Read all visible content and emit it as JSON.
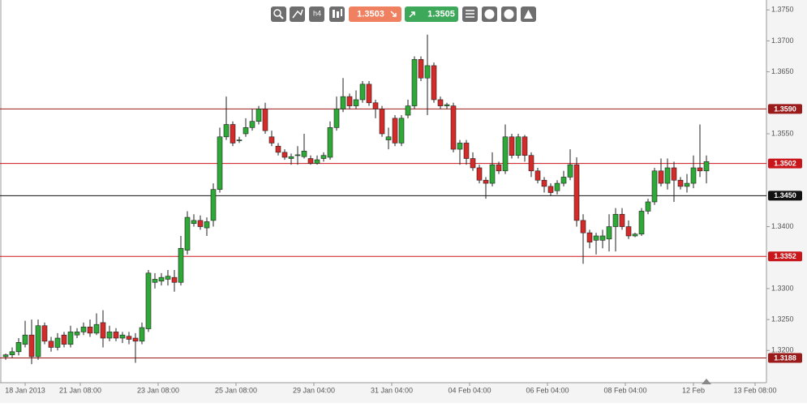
{
  "chart_data": {
    "type": "candlestick",
    "ylim": [
      1.3148,
      1.3766
    ],
    "xlim": [
      -0.875,
      117.25
    ],
    "yticks": [
      {
        "value": 1.375,
        "label": "1.3750"
      },
      {
        "value": 1.37,
        "label": "1.3700"
      },
      {
        "value": 1.365,
        "label": "1.3650"
      },
      {
        "value": 1.355,
        "label": "1.3550"
      },
      {
        "value": 1.34,
        "label": "1.3400"
      },
      {
        "value": 1.33,
        "label": "1.3300"
      },
      {
        "value": 1.325,
        "label": "1.3250"
      },
      {
        "value": 1.32,
        "label": "1.3200"
      }
    ],
    "xticks": [
      {
        "value": 3,
        "label": "18 Jan 2013"
      },
      {
        "value": 11.5,
        "label": "21 Jan 08:00"
      },
      {
        "value": 23.5,
        "label": "23 Jan 08:00"
      },
      {
        "value": 35.5,
        "label": "25 Jan 08:00"
      },
      {
        "value": 47.5,
        "label": "29 Jan 04:00"
      },
      {
        "value": 59.5,
        "label": "31 Jan 04:00"
      },
      {
        "value": 71.5,
        "label": "04 Feb 04:00"
      },
      {
        "value": 83.5,
        "label": "06 Feb 04:00"
      },
      {
        "value": 95.5,
        "label": "08 Feb 04:00"
      },
      {
        "value": 106,
        "label": "12 Feb"
      },
      {
        "value": 115.5,
        "label": "13 Feb 08:00"
      }
    ],
    "up_color": "#2ea836",
    "down_color": "#d42a2a",
    "levels": [
      {
        "value": 1.359,
        "label": "1.3590",
        "color": "#9b1b1b"
      },
      {
        "value": 1.3502,
        "label": "1.3502",
        "color": "#c8161b"
      },
      {
        "value": 1.345,
        "label": "1.3450",
        "color": "#111111"
      },
      {
        "value": 1.3352,
        "label": "1.3352",
        "color": "#c8161b"
      },
      {
        "value": 1.3188,
        "label": "1.3188",
        "color": "#9b1b1b"
      }
    ],
    "ohlc": [
      [
        1.319,
        1.3195,
        1.3185,
        1.3193
      ],
      [
        1.3193,
        1.3205,
        1.3188,
        1.3198
      ],
      [
        1.3198,
        1.322,
        1.3192,
        1.3213
      ],
      [
        1.321,
        1.3248,
        1.3205,
        1.3225
      ],
      [
        1.3225,
        1.325,
        1.3178,
        1.319
      ],
      [
        1.319,
        1.325,
        1.3185,
        1.324
      ],
      [
        1.324,
        1.3245,
        1.321,
        1.3215
      ],
      [
        1.3215,
        1.3222,
        1.3198,
        1.3205
      ],
      [
        1.3205,
        1.3228,
        1.32,
        1.322
      ],
      [
        1.3225,
        1.323,
        1.3205,
        1.321
      ],
      [
        1.321,
        1.324,
        1.3205,
        1.323
      ],
      [
        1.3225,
        1.3236,
        1.322,
        1.323
      ],
      [
        1.323,
        1.3245,
        1.3225,
        1.3238
      ],
      [
        1.3238,
        1.325,
        1.3222,
        1.3228
      ],
      [
        1.3228,
        1.326,
        1.3225,
        1.3242
      ],
      [
        1.3245,
        1.3265,
        1.3205,
        1.322
      ],
      [
        1.322,
        1.324,
        1.3215,
        1.323
      ],
      [
        1.323,
        1.3236,
        1.3215,
        1.322
      ],
      [
        1.322,
        1.323,
        1.3212,
        1.3225
      ],
      [
        1.3223,
        1.323,
        1.321,
        1.3218
      ],
      [
        1.322,
        1.3228,
        1.318,
        1.3215
      ],
      [
        1.3215,
        1.3245,
        1.321,
        1.3237
      ],
      [
        1.3235,
        1.333,
        1.323,
        1.3325
      ],
      [
        1.331,
        1.3325,
        1.33,
        1.3315
      ],
      [
        1.3312,
        1.3325,
        1.3305,
        1.3318
      ],
      [
        1.3315,
        1.333,
        1.3305,
        1.332
      ],
      [
        1.3318,
        1.333,
        1.3295,
        1.331
      ],
      [
        1.331,
        1.3385,
        1.3305,
        1.3365
      ],
      [
        1.3362,
        1.3425,
        1.3355,
        1.3415
      ],
      [
        1.3405,
        1.342,
        1.34,
        1.341
      ],
      [
        1.341,
        1.3418,
        1.3395,
        1.34
      ],
      [
        1.3398,
        1.3415,
        1.3385,
        1.3408
      ],
      [
        1.341,
        1.347,
        1.34,
        1.346
      ],
      [
        1.346,
        1.356,
        1.3455,
        1.3545
      ],
      [
        1.3545,
        1.361,
        1.354,
        1.3565
      ],
      [
        1.3565,
        1.357,
        1.353,
        1.3535
      ],
      [
        1.354,
        1.3545,
        1.3535,
        1.354
      ],
      [
        1.355,
        1.3575,
        1.3545,
        1.356
      ],
      [
        1.356,
        1.359,
        1.3555,
        1.357
      ],
      [
        1.357,
        1.3595,
        1.3565,
        1.359
      ],
      [
        1.359,
        1.36,
        1.355,
        1.3555
      ],
      [
        1.3545,
        1.3555,
        1.353,
        1.3535
      ],
      [
        1.353,
        1.3535,
        1.3515,
        1.352
      ],
      [
        1.352,
        1.3525,
        1.3508,
        1.3512
      ],
      [
        1.351,
        1.3518,
        1.35,
        1.3513
      ],
      [
        1.3515,
        1.353,
        1.35,
        1.3516
      ],
      [
        1.3513,
        1.355,
        1.351,
        1.3522
      ],
      [
        1.351,
        1.3515,
        1.35,
        1.3502
      ],
      [
        1.3502,
        1.3515,
        1.35,
        1.3508
      ],
      [
        1.351,
        1.352,
        1.3505,
        1.3515
      ],
      [
        1.3512,
        1.357,
        1.3508,
        1.356
      ],
      [
        1.356,
        1.361,
        1.3555,
        1.359
      ],
      [
        1.359,
        1.364,
        1.3585,
        1.361
      ],
      [
        1.361,
        1.3615,
        1.359,
        1.3595
      ],
      [
        1.3595,
        1.362,
        1.359,
        1.3605
      ],
      [
        1.3605,
        1.3635,
        1.36,
        1.363
      ],
      [
        1.363,
        1.3635,
        1.3595,
        1.36
      ],
      [
        1.36,
        1.3605,
        1.3575,
        1.359
      ],
      [
        1.359,
        1.3595,
        1.3545,
        1.355
      ],
      [
        1.354,
        1.356,
        1.3525,
        1.3545
      ],
      [
        1.3575,
        1.358,
        1.353,
        1.3535
      ],
      [
        1.3535,
        1.358,
        1.353,
        1.3575
      ],
      [
        1.358,
        1.3605,
        1.3575,
        1.3595
      ],
      [
        1.3595,
        1.3675,
        1.359,
        1.367
      ],
      [
        1.367,
        1.3675,
        1.3635,
        1.364
      ],
      [
        1.364,
        1.371,
        1.358,
        1.366
      ],
      [
        1.366,
        1.3665,
        1.36,
        1.3605
      ],
      [
        1.3605,
        1.361,
        1.359,
        1.3595
      ],
      [
        1.3595,
        1.36,
        1.359,
        1.3597
      ],
      [
        1.3595,
        1.36,
        1.352,
        1.3525
      ],
      [
        1.3525,
        1.354,
        1.35,
        1.3535
      ],
      [
        1.3535,
        1.354,
        1.35,
        1.351
      ],
      [
        1.351,
        1.352,
        1.349,
        1.3495
      ],
      [
        1.3495,
        1.35,
        1.347,
        1.3475
      ],
      [
        1.3475,
        1.348,
        1.3445,
        1.347
      ],
      [
        1.347,
        1.352,
        1.3465,
        1.35
      ],
      [
        1.35,
        1.3505,
        1.3485,
        1.349
      ],
      [
        1.349,
        1.3565,
        1.3485,
        1.3545
      ],
      [
        1.3545,
        1.355,
        1.351,
        1.3515
      ],
      [
        1.3515,
        1.355,
        1.351,
        1.3545
      ],
      [
        1.3545,
        1.3548,
        1.3505,
        1.3515
      ],
      [
        1.3515,
        1.352,
        1.348,
        1.349
      ],
      [
        1.349,
        1.3495,
        1.347,
        1.3475
      ],
      [
        1.3475,
        1.348,
        1.3455,
        1.3465
      ],
      [
        1.3465,
        1.347,
        1.345,
        1.3455
      ],
      [
        1.3458,
        1.3475,
        1.3452,
        1.347
      ],
      [
        1.347,
        1.349,
        1.3465,
        1.348
      ],
      [
        1.348,
        1.3525,
        1.3475,
        1.35
      ],
      [
        1.35,
        1.3512,
        1.34,
        1.341
      ],
      [
        1.341,
        1.342,
        1.334,
        1.339
      ],
      [
        1.339,
        1.3395,
        1.3365,
        1.3375
      ],
      [
        1.3378,
        1.339,
        1.3355,
        1.3385
      ],
      [
        1.3378,
        1.3395,
        1.3365,
        1.3385
      ],
      [
        1.338,
        1.342,
        1.336,
        1.34
      ],
      [
        1.34,
        1.343,
        1.336,
        1.342
      ],
      [
        1.342,
        1.343,
        1.3395,
        1.34
      ],
      [
        1.34,
        1.341,
        1.338,
        1.3385
      ],
      [
        1.3385,
        1.339,
        1.3383,
        1.3388
      ],
      [
        1.3388,
        1.343,
        1.3385,
        1.3425
      ],
      [
        1.3425,
        1.3445,
        1.342,
        1.344
      ],
      [
        1.344,
        1.3495,
        1.3435,
        1.349
      ],
      [
        1.349,
        1.351,
        1.3465,
        1.347
      ],
      [
        1.347,
        1.351,
        1.346,
        1.3495
      ],
      [
        1.3495,
        1.3505,
        1.344,
        1.3475
      ],
      [
        1.3475,
        1.348,
        1.346,
        1.3465
      ],
      [
        1.3465,
        1.3485,
        1.3455,
        1.347
      ],
      [
        1.347,
        1.3515,
        1.3462,
        1.3495
      ],
      [
        1.3495,
        1.3565,
        1.348,
        1.349
      ],
      [
        1.349,
        1.3515,
        1.347,
        1.3505
      ]
    ],
    "toolbar": {
      "timeframe": "h4",
      "sell_price": "1.3503",
      "buy_price": "1.3505"
    }
  }
}
